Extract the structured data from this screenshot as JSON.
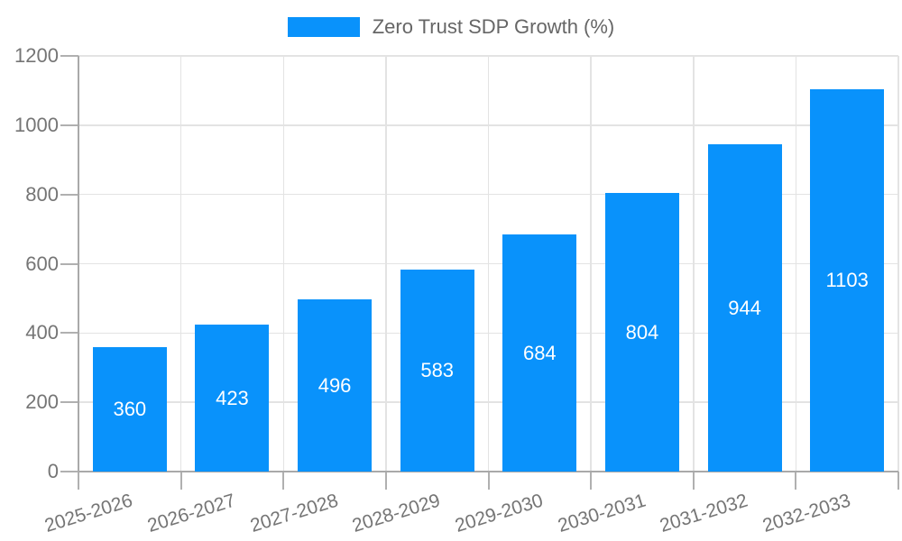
{
  "legend": {
    "label": "Zero Trust SDP Growth (%)"
  },
  "chart_data": {
    "type": "bar",
    "title": "Zero Trust SDP Growth (%)",
    "categories": [
      "2025-2026",
      "2026-2027",
      "2027-2028",
      "2028-2029",
      "2029-2030",
      "2030-2031",
      "2031-2032",
      "2032-2033"
    ],
    "values": [
      360,
      423,
      496,
      583,
      684,
      804,
      944,
      1103
    ],
    "xlabel": "",
    "ylabel": "",
    "ylim": [
      0,
      1200
    ],
    "yticks": [
      0,
      200,
      400,
      600,
      800,
      1000,
      1200
    ],
    "grid": true,
    "legend_position": "top-center",
    "value_labels": "inside-center",
    "bar_color": "#0992fb",
    "value_label_color": "#ffffff",
    "axis_text_color": "#757575",
    "legend_text_color": "#666666",
    "grid_color": "#e3e3e3",
    "axis_line_color": "#a9a9a9",
    "tick_color": "#b0b0b0"
  }
}
